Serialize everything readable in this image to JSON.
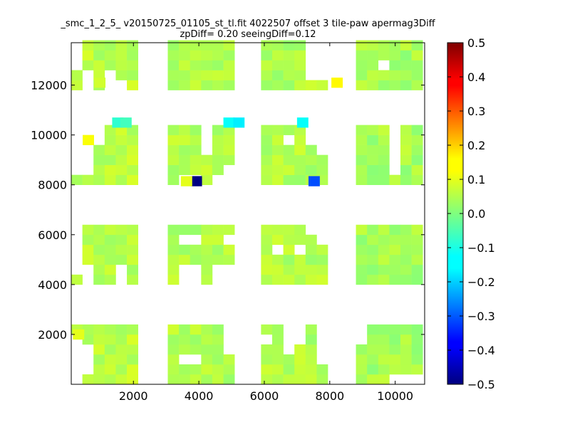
{
  "chart_data": {
    "type": "heatmap",
    "title": "_smc_1_2_5_ v20150725_01105_st_tl.fit 4022507 offset 3 tile-paw apermag3Diff",
    "subtitle": "zpDiff= 0.20 seeingDiff=0.12",
    "xlabel": "",
    "ylabel": "",
    "xlim": [
      100,
      10900
    ],
    "ylim": [
      0,
      13700
    ],
    "xticks": [
      2000,
      4000,
      6000,
      8000,
      10000
    ],
    "yticks": [
      2000,
      4000,
      6000,
      8000,
      10000,
      12000
    ],
    "colorbar": {
      "colormap": "jet",
      "vmin": -0.5,
      "vmax": 0.5,
      "ticks": [
        "0.5",
        "0.4",
        "0.3",
        "0.2",
        "0.1",
        "0.0",
        "−0.1",
        "−0.2",
        "−0.3",
        "−0.4",
        "−0.5"
      ]
    },
    "grid": false,
    "pixel_size": [
      340,
      400
    ],
    "chips": [
      {
        "x0": 100,
        "y0": 0,
        "nx": 6,
        "ny": 6,
        "base": 0.06,
        "vary": 0.03,
        "missing": [
          [
            0,
            4
          ],
          [
            0,
            3
          ],
          [
            0,
            2
          ],
          [
            0,
            1
          ],
          [
            0,
            0
          ],
          [
            1,
            3
          ],
          [
            1,
            2
          ],
          [
            1,
            1
          ]
        ]
      },
      {
        "x0": 3050,
        "y0": 0,
        "nx": 6,
        "ny": 6,
        "base": 0.05,
        "vary": 0.03,
        "missing": [
          [
            1,
            2
          ],
          [
            2,
            2
          ],
          [
            5,
            4
          ],
          [
            5,
            3
          ],
          [
            5,
            5
          ]
        ]
      },
      {
        "x0": 5900,
        "y0": 0,
        "nx": 6,
        "ny": 6,
        "base": 0.05,
        "vary": 0.03,
        "missing": [
          [
            0,
            4
          ],
          [
            2,
            3
          ],
          [
            2,
            4
          ],
          [
            2,
            5
          ],
          [
            3,
            4
          ],
          [
            3,
            5
          ],
          [
            5,
            2
          ],
          [
            5,
            3
          ],
          [
            5,
            4
          ],
          [
            5,
            5
          ]
        ]
      },
      {
        "x0": 8800,
        "y0": 0,
        "nx": 6,
        "ny": 6,
        "base": 0.04,
        "vary": 0.03,
        "missing": [
          [
            0,
            4
          ],
          [
            0,
            5
          ],
          [
            3,
            0
          ],
          [
            4,
            0
          ],
          [
            5,
            0
          ]
        ]
      },
      {
        "x0": 100,
        "y0": 4000,
        "nx": 6,
        "ny": 6,
        "base": 0.06,
        "vary": 0.03,
        "missing": [
          [
            0,
            5
          ],
          [
            0,
            4
          ],
          [
            0,
            3
          ],
          [
            0,
            2
          ],
          [
            0,
            1
          ],
          [
            1,
            0
          ],
          [
            1,
            1
          ],
          [
            4,
            0
          ],
          [
            4,
            1
          ]
        ]
      },
      {
        "x0": 3050,
        "y0": 4000,
        "nx": 6,
        "ny": 6,
        "base": 0.05,
        "vary": 0.03,
        "missing": [
          [
            1,
            0
          ],
          [
            1,
            1
          ],
          [
            2,
            0
          ],
          [
            2,
            1
          ],
          [
            4,
            0
          ],
          [
            4,
            1
          ],
          [
            5,
            0
          ],
          [
            5,
            1
          ],
          [
            1,
            4
          ],
          [
            2,
            4
          ],
          [
            5,
            4
          ]
        ]
      },
      {
        "x0": 5900,
        "y0": 4000,
        "nx": 6,
        "ny": 6,
        "base": 0.05,
        "vary": 0.03,
        "missing": [
          [
            5,
            5
          ],
          [
            4,
            5
          ],
          [
            1,
            3
          ],
          [
            3,
            3
          ],
          [
            5,
            4
          ]
        ]
      },
      {
        "x0": 8800,
        "y0": 4000,
        "nx": 6,
        "ny": 6,
        "base": 0.04,
        "vary": 0.03,
        "missing": []
      },
      {
        "x0": 100,
        "y0": 8000,
        "nx": 6,
        "ny": 6,
        "base": 0.06,
        "vary": 0.03,
        "missing": [
          [
            0,
            1
          ],
          [
            0,
            2
          ],
          [
            0,
            3
          ],
          [
            0,
            4
          ],
          [
            0,
            5
          ],
          [
            1,
            1
          ],
          [
            1,
            2
          ],
          [
            1,
            3
          ],
          [
            1,
            4
          ],
          [
            1,
            5
          ],
          [
            2,
            4
          ],
          [
            2,
            5
          ]
        ]
      },
      {
        "x0": 3050,
        "y0": 8000,
        "nx": 6,
        "ny": 6,
        "base": 0.05,
        "vary": 0.03,
        "missing": [
          [
            3,
            3
          ],
          [
            3,
            4
          ],
          [
            3,
            5
          ],
          [
            1,
            0
          ],
          [
            2,
            0
          ],
          [
            4,
            0
          ],
          [
            5,
            1
          ],
          [
            5,
            0
          ]
        ]
      },
      {
        "x0": 5900,
        "y0": 8000,
        "nx": 6,
        "ny": 6,
        "base": 0.05,
        "vary": 0.03,
        "missing": [
          [
            2,
            4
          ],
          [
            4,
            4
          ],
          [
            4,
            5
          ],
          [
            5,
            5
          ],
          [
            5,
            4
          ],
          [
            5,
            3
          ]
        ]
      },
      {
        "x0": 8800,
        "y0": 8000,
        "nx": 6,
        "ny": 6,
        "base": 0.04,
        "vary": 0.03,
        "missing": [
          [
            3,
            1
          ],
          [
            3,
            2
          ],
          [
            3,
            3
          ],
          [
            3,
            4
          ],
          [
            3,
            5
          ]
        ]
      },
      {
        "x0": 100,
        "y0": 11800,
        "nx": 6,
        "ny": 5,
        "base": 0.06,
        "vary": 0.03,
        "missing": [
          [
            0,
            2
          ],
          [
            0,
            3
          ],
          [
            0,
            4
          ],
          [
            1,
            0
          ],
          [
            1,
            1
          ],
          [
            3,
            0
          ],
          [
            3,
            1
          ],
          [
            4,
            0
          ]
        ]
      },
      {
        "x0": 3050,
        "y0": 11800,
        "nx": 6,
        "ny": 5,
        "base": 0.05,
        "vary": 0.03,
        "missing": []
      },
      {
        "x0": 5900,
        "y0": 11800,
        "nx": 6,
        "ny": 5,
        "base": 0.05,
        "vary": 0.03,
        "missing": [
          [
            4,
            1
          ],
          [
            4,
            2
          ],
          [
            4,
            3
          ],
          [
            4,
            4
          ],
          [
            5,
            1
          ],
          [
            5,
            2
          ],
          [
            5,
            3
          ],
          [
            5,
            4
          ]
        ]
      },
      {
        "x0": 8800,
        "y0": 11800,
        "nx": 6,
        "ny": 5,
        "base": 0.04,
        "vary": 0.03,
        "missing": [
          [
            2,
            2
          ]
        ]
      }
    ],
    "special_cells": [
      {
        "x": 1350,
        "y": 10300,
        "value": -0.08
      },
      {
        "x": 1600,
        "y": 10300,
        "value": -0.06
      },
      {
        "x": 4750,
        "y": 10300,
        "value": -0.12
      },
      {
        "x": 5050,
        "y": 10300,
        "value": -0.14
      },
      {
        "x": 7000,
        "y": 10300,
        "value": -0.12
      },
      {
        "x": 7350,
        "y": 7950,
        "value": -0.3
      },
      {
        "x": 3750,
        "y": 7950,
        "value": -0.5
      },
      {
        "x": 450,
        "y": 9600,
        "value": 0.12
      },
      {
        "x": 8050,
        "y": 11900,
        "value": 0.13
      },
      {
        "x": 800,
        "y": 11900,
        "value": 0.08
      },
      {
        "x": 150,
        "y": 1800,
        "value": 0.1
      },
      {
        "x": 3450,
        "y": 7950,
        "value": 0.1
      }
    ]
  }
}
